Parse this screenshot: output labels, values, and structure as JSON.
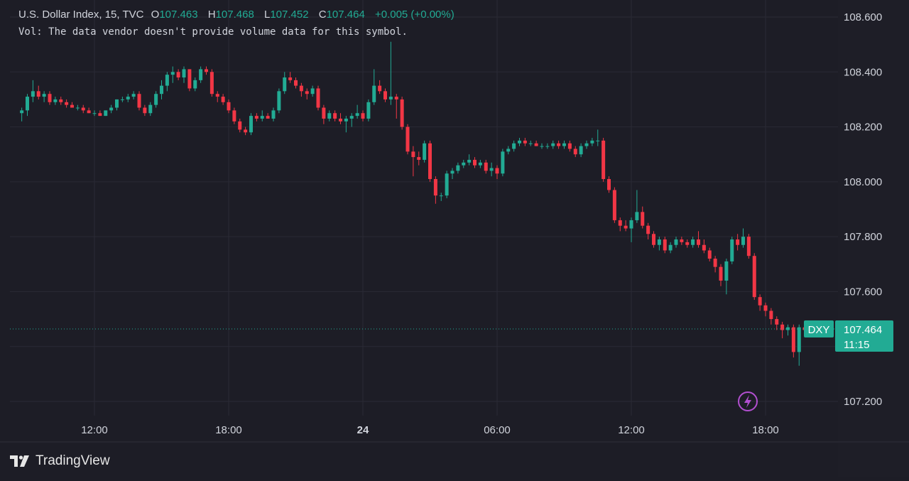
{
  "legend": {
    "symbol": "U.S. Dollar Index, 15, TVC",
    "open_key": "O",
    "open_val": "107.463",
    "high_key": "H",
    "high_val": "107.468",
    "low_key": "L",
    "low_val": "107.452",
    "close_key": "C",
    "close_val": "107.464",
    "change": "+0.005 (+0.00%)",
    "volume_note": "Vol: The data vendor doesn't provide volume data for this symbol."
  },
  "price_tag": {
    "ticker": "DXY",
    "price": "107.464",
    "countdown": "11:15"
  },
  "brand": "TradingView",
  "colors": {
    "background": "#1d1d26",
    "up": "#22ab94",
    "down": "#f23645",
    "grid": "#2a2a35",
    "text": "#d1d4dc",
    "lightning": "#b24fd0"
  },
  "chart_data": {
    "type": "candlestick",
    "interval_minutes": 15,
    "y_ticks": [
      108.6,
      108.4,
      108.2,
      108.0,
      107.8,
      107.6,
      107.2
    ],
    "y_tick_labels": [
      "108.600",
      "108.400",
      "108.200",
      "108.000",
      "107.800",
      "107.600",
      "107.200"
    ],
    "ylim": [
      107.14,
      108.66
    ],
    "x_ticks": [
      {
        "label": "12:00",
        "hours": 12
      },
      {
        "label": "18:00",
        "hours": 18
      },
      {
        "label": "24",
        "hours": 24,
        "bold": true
      },
      {
        "label": "06:00",
        "hours": 30
      },
      {
        "label": "12:00",
        "hours": 36
      },
      {
        "label": "18:00",
        "hours": 42
      }
    ],
    "x_ticks_pixel_anchor_note": "",
    "last_price": 107.464,
    "ohlc": [
      [
        108.25,
        108.27,
        108.22,
        108.26
      ],
      [
        108.26,
        108.32,
        108.24,
        108.31
      ],
      [
        108.31,
        108.37,
        108.29,
        108.33
      ],
      [
        108.33,
        108.35,
        108.3,
        108.31
      ],
      [
        108.31,
        108.33,
        108.29,
        108.32
      ],
      [
        108.32,
        108.33,
        108.28,
        108.29
      ],
      [
        108.29,
        108.31,
        108.28,
        108.3
      ],
      [
        108.3,
        108.31,
        108.28,
        108.29
      ],
      [
        108.29,
        108.3,
        108.27,
        108.28
      ],
      [
        108.28,
        108.29,
        108.27,
        108.27
      ],
      [
        108.27,
        108.28,
        108.26,
        108.27
      ],
      [
        108.27,
        108.28,
        108.25,
        108.26
      ],
      [
        108.26,
        108.27,
        108.25,
        108.25
      ],
      [
        108.25,
        108.26,
        108.24,
        108.25
      ],
      [
        108.25,
        108.26,
        108.24,
        108.24
      ],
      [
        108.24,
        108.26,
        108.24,
        108.26
      ],
      [
        108.26,
        108.28,
        108.25,
        108.27
      ],
      [
        108.27,
        108.3,
        108.26,
        108.3
      ],
      [
        108.3,
        108.31,
        108.29,
        108.3
      ],
      [
        108.3,
        108.32,
        108.29,
        108.31
      ],
      [
        108.31,
        108.33,
        108.3,
        108.32
      ],
      [
        108.32,
        108.33,
        108.26,
        108.27
      ],
      [
        108.27,
        108.28,
        108.24,
        108.25
      ],
      [
        108.25,
        108.29,
        108.24,
        108.28
      ],
      [
        108.28,
        108.33,
        108.27,
        108.32
      ],
      [
        108.32,
        108.37,
        108.3,
        108.35
      ],
      [
        108.35,
        108.4,
        108.33,
        108.39
      ],
      [
        108.39,
        108.42,
        108.36,
        108.4
      ],
      [
        108.4,
        108.41,
        108.37,
        108.38
      ],
      [
        108.38,
        108.42,
        108.36,
        108.41
      ],
      [
        108.41,
        108.41,
        108.33,
        108.34
      ],
      [
        108.34,
        108.38,
        108.33,
        108.37
      ],
      [
        108.37,
        108.42,
        108.36,
        108.41
      ],
      [
        108.41,
        108.42,
        108.39,
        108.4
      ],
      [
        108.4,
        108.41,
        108.31,
        108.32
      ],
      [
        108.32,
        108.33,
        108.29,
        108.31
      ],
      [
        108.31,
        108.32,
        108.28,
        108.29
      ],
      [
        108.29,
        108.3,
        108.25,
        108.26
      ],
      [
        108.26,
        108.27,
        108.21,
        108.22
      ],
      [
        108.22,
        108.23,
        108.18,
        108.19
      ],
      [
        108.19,
        108.2,
        108.17,
        108.18
      ],
      [
        108.18,
        108.25,
        108.17,
        108.24
      ],
      [
        108.24,
        108.25,
        108.22,
        108.23
      ],
      [
        108.23,
        108.26,
        108.22,
        108.24
      ],
      [
        108.24,
        108.25,
        108.23,
        108.23
      ],
      [
        108.23,
        108.27,
        108.22,
        108.26
      ],
      [
        108.26,
        108.34,
        108.25,
        108.33
      ],
      [
        108.33,
        108.4,
        108.32,
        108.38
      ],
      [
        108.38,
        108.4,
        108.36,
        108.37
      ],
      [
        108.37,
        108.38,
        108.34,
        108.35
      ],
      [
        108.35,
        108.36,
        108.31,
        108.33
      ],
      [
        108.33,
        108.34,
        108.3,
        108.32
      ],
      [
        108.32,
        108.35,
        108.31,
        108.34
      ],
      [
        108.34,
        108.35,
        108.26,
        108.27
      ],
      [
        108.27,
        108.28,
        108.21,
        108.23
      ],
      [
        108.23,
        108.26,
        108.22,
        108.25
      ],
      [
        108.25,
        108.26,
        108.22,
        108.23
      ],
      [
        108.23,
        108.25,
        108.21,
        108.22
      ],
      [
        108.22,
        108.24,
        108.18,
        108.23
      ],
      [
        108.23,
        108.25,
        108.2,
        108.24
      ],
      [
        108.24,
        108.28,
        108.23,
        108.25
      ],
      [
        108.25,
        108.26,
        108.22,
        108.23
      ],
      [
        108.23,
        108.3,
        108.22,
        108.29
      ],
      [
        108.29,
        108.41,
        108.28,
        108.35
      ],
      [
        108.35,
        108.37,
        108.32,
        108.33
      ],
      [
        108.33,
        108.34,
        108.29,
        108.3
      ],
      [
        108.3,
        108.51,
        108.28,
        108.31
      ],
      [
        108.31,
        108.32,
        108.23,
        108.3
      ],
      [
        108.3,
        108.31,
        108.19,
        108.2
      ],
      [
        108.2,
        108.21,
        108.1,
        108.11
      ],
      [
        108.11,
        108.13,
        108.02,
        108.09
      ],
      [
        108.09,
        108.11,
        108.06,
        108.08
      ],
      [
        108.08,
        108.15,
        108.07,
        108.14
      ],
      [
        108.14,
        108.15,
        108.0,
        108.01
      ],
      [
        108.01,
        108.02,
        107.92,
        107.95
      ],
      [
        107.95,
        107.96,
        107.93,
        107.95
      ],
      [
        107.95,
        108.04,
        107.94,
        108.03
      ],
      [
        108.03,
        108.05,
        108.01,
        108.04
      ],
      [
        108.04,
        108.07,
        108.03,
        108.06
      ],
      [
        108.06,
        108.08,
        108.05,
        108.07
      ],
      [
        108.07,
        108.1,
        108.06,
        108.08
      ],
      [
        108.08,
        108.09,
        108.05,
        108.06
      ],
      [
        108.06,
        108.08,
        108.05,
        108.07
      ],
      [
        108.07,
        108.08,
        108.03,
        108.04
      ],
      [
        108.04,
        108.07,
        108.02,
        108.05
      ],
      [
        108.05,
        108.06,
        108.01,
        108.03
      ],
      [
        108.03,
        108.12,
        108.02,
        108.11
      ],
      [
        108.11,
        108.13,
        108.1,
        108.12
      ],
      [
        108.12,
        108.15,
        108.11,
        108.14
      ],
      [
        108.14,
        108.16,
        108.13,
        108.15
      ],
      [
        108.15,
        108.16,
        108.13,
        108.14
      ],
      [
        108.14,
        108.15,
        108.13,
        108.14
      ],
      [
        108.14,
        108.15,
        108.13,
        108.13
      ],
      [
        108.13,
        108.14,
        108.12,
        108.13
      ],
      [
        108.13,
        108.14,
        108.12,
        108.13
      ],
      [
        108.13,
        108.15,
        108.12,
        108.14
      ],
      [
        108.14,
        108.15,
        108.12,
        108.13
      ],
      [
        108.13,
        108.15,
        108.12,
        108.14
      ],
      [
        108.14,
        108.15,
        108.11,
        108.12
      ],
      [
        108.12,
        108.13,
        108.09,
        108.1
      ],
      [
        108.1,
        108.14,
        108.09,
        108.13
      ],
      [
        108.13,
        108.15,
        108.12,
        108.14
      ],
      [
        108.14,
        108.16,
        108.13,
        108.15
      ],
      [
        108.15,
        108.19,
        108.13,
        108.15
      ],
      [
        108.15,
        108.16,
        108.0,
        108.01
      ],
      [
        108.01,
        108.02,
        107.96,
        107.97
      ],
      [
        107.97,
        107.98,
        107.85,
        107.86
      ],
      [
        107.86,
        107.87,
        107.82,
        107.84
      ],
      [
        107.84,
        107.86,
        107.82,
        107.83
      ],
      [
        107.83,
        107.87,
        107.78,
        107.86
      ],
      [
        107.86,
        107.97,
        107.85,
        107.89
      ],
      [
        107.89,
        107.91,
        107.83,
        107.84
      ],
      [
        107.84,
        107.85,
        107.79,
        107.81
      ],
      [
        107.81,
        107.82,
        107.76,
        107.77
      ],
      [
        107.77,
        107.8,
        107.75,
        107.79
      ],
      [
        107.79,
        107.8,
        107.74,
        107.75
      ],
      [
        107.75,
        107.78,
        107.74,
        107.77
      ],
      [
        107.77,
        107.8,
        107.76,
        107.79
      ],
      [
        107.79,
        107.8,
        107.77,
        107.78
      ],
      [
        107.78,
        107.79,
        107.76,
        107.77
      ],
      [
        107.77,
        107.8,
        107.76,
        107.79
      ],
      [
        107.79,
        107.82,
        107.76,
        107.77
      ],
      [
        107.77,
        107.79,
        107.74,
        107.75
      ],
      [
        107.75,
        107.76,
        107.71,
        107.72
      ],
      [
        107.72,
        107.73,
        107.67,
        107.69
      ],
      [
        107.69,
        107.7,
        107.62,
        107.64
      ],
      [
        107.64,
        107.72,
        107.59,
        107.71
      ],
      [
        107.71,
        107.8,
        107.7,
        107.79
      ],
      [
        107.79,
        107.81,
        107.75,
        107.77
      ],
      [
        107.77,
        107.83,
        107.76,
        107.8
      ],
      [
        107.8,
        107.81,
        107.72,
        107.73
      ],
      [
        107.73,
        107.74,
        107.57,
        107.58
      ],
      [
        107.58,
        107.59,
        107.53,
        107.55
      ],
      [
        107.55,
        107.56,
        107.51,
        107.53
      ],
      [
        107.53,
        107.54,
        107.48,
        107.5
      ],
      [
        107.5,
        107.51,
        107.46,
        107.48
      ],
      [
        107.48,
        107.49,
        107.43,
        107.46
      ],
      [
        107.46,
        107.48,
        107.44,
        107.47
      ],
      [
        107.47,
        107.48,
        107.36,
        107.38
      ],
      [
        107.38,
        107.48,
        107.33,
        107.47
      ],
      [
        107.47,
        107.49,
        107.45,
        107.46
      ],
      [
        107.46,
        107.48,
        107.45,
        107.46
      ],
      [
        107.463,
        107.468,
        107.452,
        107.464
      ]
    ]
  }
}
